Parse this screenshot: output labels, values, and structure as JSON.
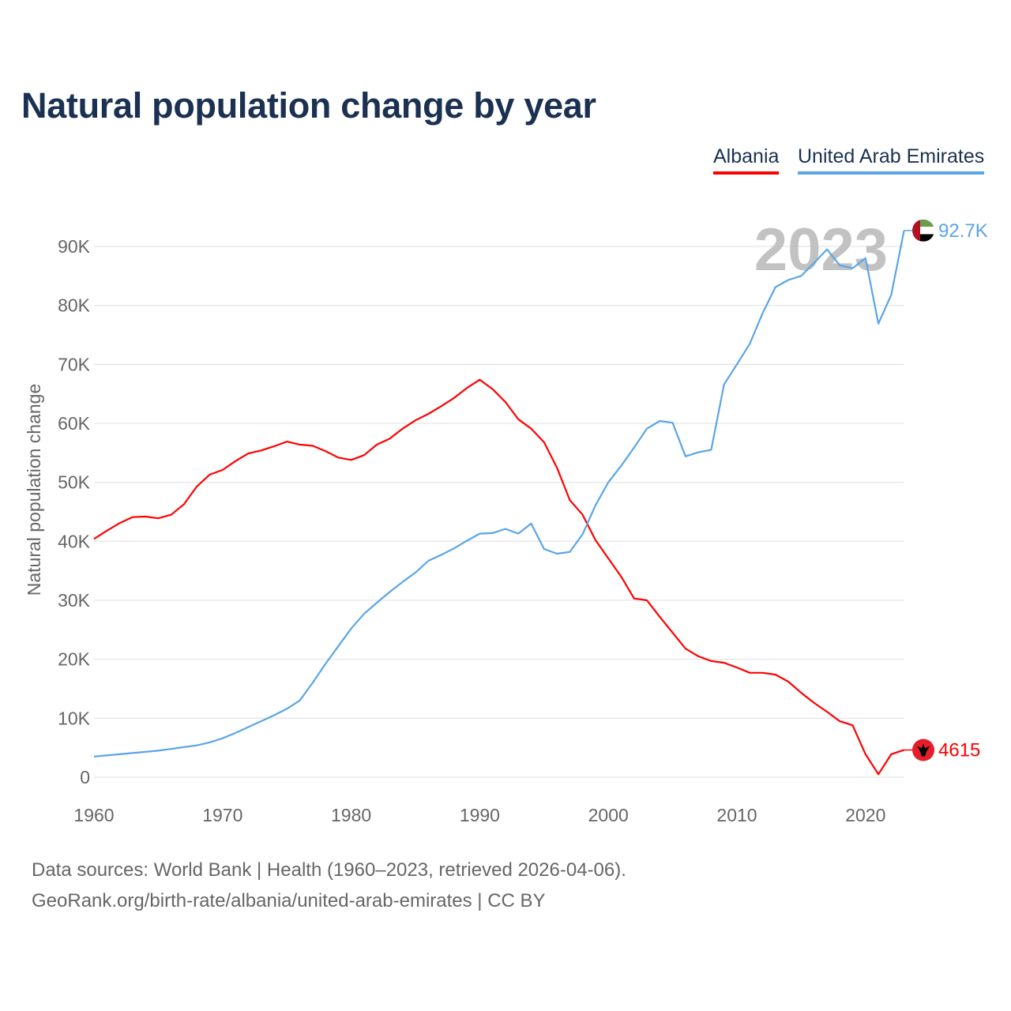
{
  "chart_data": {
    "type": "line",
    "title": "Natural population change by year",
    "xlabel": "",
    "ylabel": "Natural population change",
    "xlim": [
      1960,
      2023
    ],
    "ylim": [
      0,
      95000
    ],
    "x_ticks": [
      1960,
      1970,
      1980,
      1990,
      2000,
      2010,
      2020
    ],
    "x_tick_labels": [
      "1960",
      "1970",
      "1980",
      "1990",
      "2000",
      "2010",
      "2020"
    ],
    "y_ticks": [
      0,
      10000,
      20000,
      30000,
      40000,
      50000,
      60000,
      70000,
      80000,
      90000
    ],
    "y_tick_labels": [
      "0",
      "10K",
      "20K",
      "30K",
      "40K",
      "50K",
      "60K",
      "70K",
      "80K",
      "90K"
    ],
    "grid": true,
    "legend_position": "top-right",
    "current_year_label": "2023",
    "x": [
      1960,
      1961,
      1962,
      1963,
      1964,
      1965,
      1966,
      1967,
      1968,
      1969,
      1970,
      1971,
      1972,
      1973,
      1974,
      1975,
      1976,
      1977,
      1978,
      1979,
      1980,
      1981,
      1982,
      1983,
      1984,
      1985,
      1986,
      1987,
      1988,
      1989,
      1990,
      1991,
      1992,
      1993,
      1994,
      1995,
      1996,
      1997,
      1998,
      1999,
      2000,
      2001,
      2002,
      2003,
      2004,
      2005,
      2006,
      2007,
      2008,
      2009,
      2010,
      2011,
      2012,
      2013,
      2014,
      2015,
      2016,
      2017,
      2018,
      2019,
      2020,
      2021,
      2022,
      2023
    ],
    "series": [
      {
        "name": "Albania",
        "color": "#ff0000",
        "end_label": "4615",
        "flag": "albania-flag",
        "values": [
          40400,
          41800,
          43100,
          44100,
          44200,
          43900,
          44500,
          46300,
          49300,
          51300,
          52100,
          53600,
          54900,
          55400,
          56100,
          56900,
          56400,
          56200,
          55300,
          54200,
          53800,
          54600,
          56400,
          57400,
          59100,
          60500,
          61600,
          62900,
          64300,
          66000,
          67400,
          65800,
          63600,
          60700,
          59100,
          56800,
          52500,
          47000,
          44500,
          40200,
          37100,
          34000,
          30300,
          30000,
          27200,
          24500,
          21800,
          20500,
          19700,
          19400,
          18600,
          17700,
          17700,
          17400,
          16200,
          14300,
          12600,
          11100,
          9500,
          8800,
          3900,
          500,
          3900,
          4615
        ]
      },
      {
        "name": "United Arab Emirates",
        "color": "#5aa5e8",
        "end_label": "92.7K",
        "flag": "uae-flag",
        "values": [
          3500,
          3700,
          3900,
          4100,
          4300,
          4500,
          4800,
          5100,
          5400,
          5900,
          6600,
          7500,
          8500,
          9500,
          10500,
          11600,
          13000,
          16000,
          19200,
          22200,
          25200,
          27700,
          29600,
          31400,
          33100,
          34700,
          36700,
          37700,
          38800,
          40100,
          41300,
          41400,
          42100,
          41300,
          43000,
          38700,
          37900,
          38200,
          41200,
          46100,
          50000,
          52800,
          55900,
          59100,
          60400,
          60100,
          54400,
          55100,
          55500,
          66600,
          70000,
          73500,
          78700,
          83100,
          84300,
          85000,
          87200,
          89500,
          86800,
          86300,
          88000,
          76900,
          81800,
          92700
        ]
      }
    ]
  },
  "footer": {
    "line1": "Data sources: World Bank | Health (1960–2023, retrieved 2026-04-06).",
    "line2": "GeoRank.org/birth-rate/albania/united-arab-emirates | CC BY"
  }
}
